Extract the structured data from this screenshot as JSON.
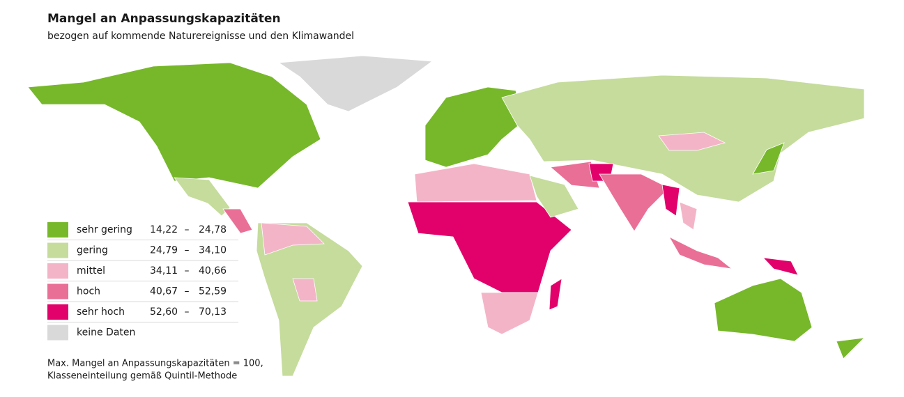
{
  "header": {
    "title": "Mangel an Anpassungskapazitäten",
    "subtitle": "bezogen auf kommende Naturereignisse und den Klimawandel"
  },
  "legend": [
    {
      "label": "sehr gering",
      "from": "14,22",
      "dash": "–",
      "to": "24,78",
      "color": "#76b82a"
    },
    {
      "label": "gering",
      "from": "24,79",
      "dash": "–",
      "to": "34,10",
      "color": "#c5dc9c"
    },
    {
      "label": "mittel",
      "from": "34,11",
      "dash": "–",
      "to": "40,66",
      "color": "#f4b4c7"
    },
    {
      "label": "hoch",
      "from": "40,67",
      "dash": "–",
      "to": "52,59",
      "color": "#ea6f97"
    },
    {
      "label": "sehr hoch",
      "from": "52,60",
      "dash": "–",
      "to": "70,13",
      "color": "#e2006a"
    },
    {
      "label": "keine Daten",
      "color": "#d9d9d9"
    }
  ],
  "note": [
    "Max. Mangel an Anpassungskapazitäten = 100,",
    "Klasseneinteilung gemäß Quintil-Methode"
  ]
}
